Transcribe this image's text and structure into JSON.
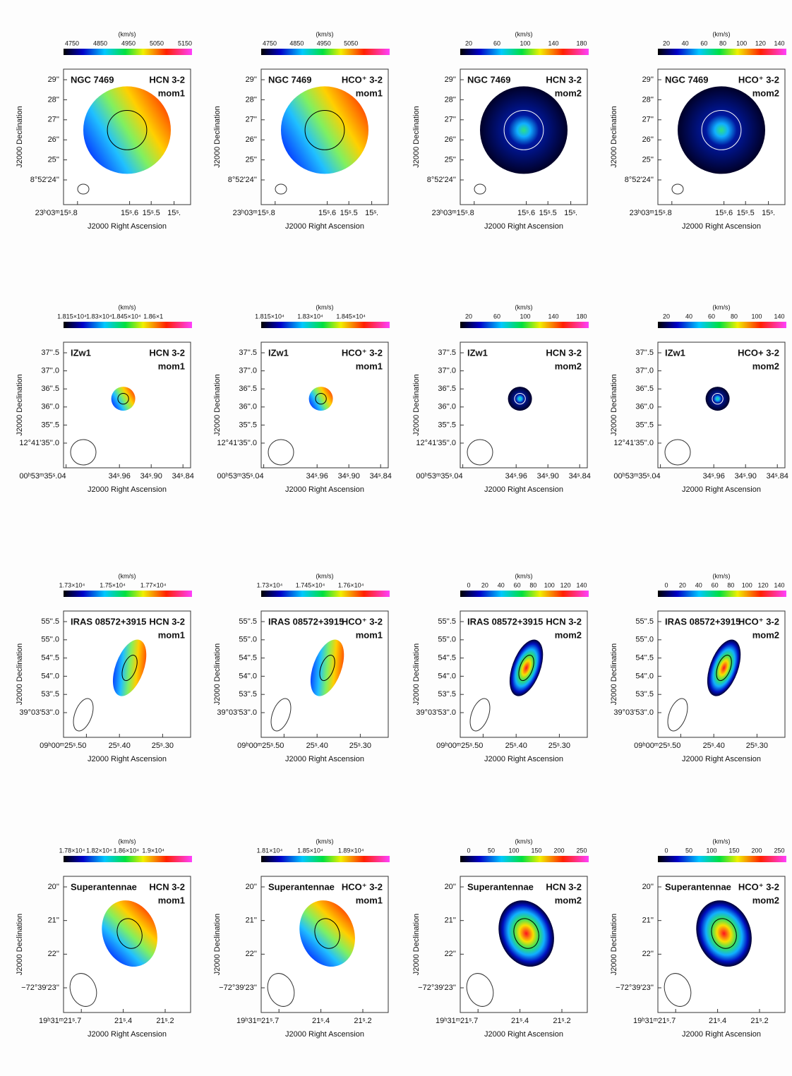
{
  "colorbar_unit": "(km/s)",
  "x_axis_label": "J2000 Right Ascension",
  "y_axis_label": "J2000 Declination",
  "rows": [
    {
      "object": "NGC 7469",
      "yticks": [
        "29''",
        "28''",
        "27''",
        "26''",
        "25''",
        "8°52'24''"
      ],
      "xticks": [
        "23ʰ03ᵐ15ˢ.8",
        "15ˢ.6",
        "15ˢ.5",
        "15ˢ."
      ],
      "panels": [
        {
          "colorbar_ticks": [
            "4750",
            "4850",
            "4950",
            "5050",
            "5150"
          ],
          "line": "HCN 3-2",
          "moment": "mom1"
        },
        {
          "colorbar_ticks": [
            "4750",
            "4850",
            "4950",
            "5050"
          ],
          "line": "HCO⁺ 3-2",
          "moment": "mom1"
        },
        {
          "colorbar_ticks": [
            "20",
            "60",
            "100",
            "140",
            "180"
          ],
          "line": "HCN 3-2",
          "moment": "mom2"
        },
        {
          "colorbar_ticks": [
            "20",
            "40",
            "60",
            "80",
            "100",
            "120",
            "140"
          ],
          "line": "HCO⁺ 3-2",
          "moment": "mom2"
        }
      ]
    },
    {
      "object": "IZw1",
      "yticks": [
        "37''.5",
        "37''.0",
        "36''.5",
        "36''.0",
        "35''.5",
        "12°41'35''.0"
      ],
      "xticks": [
        "00ʰ53ᵐ35ˢ.04",
        "34ˢ.96",
        "34ˢ.90",
        "34ˢ.84"
      ],
      "panels": [
        {
          "colorbar_ticks": [
            "1.815×10⁴",
            "1.83×10⁴",
            "1.845×10⁴",
            "1.86×1"
          ],
          "line": "HCN 3-2",
          "moment": "mom1"
        },
        {
          "colorbar_ticks": [
            "1.815×10⁴",
            "1.83×10⁴",
            "1.845×10⁴"
          ],
          "line": "HCO⁺ 3-2",
          "moment": "mom1"
        },
        {
          "colorbar_ticks": [
            "20",
            "60",
            "100",
            "140",
            "180"
          ],
          "line": "HCN 3-2",
          "moment": "mom2"
        },
        {
          "colorbar_ticks": [
            "20",
            "40",
            "60",
            "80",
            "100",
            "140"
          ],
          "line": "HCO+ 3-2",
          "moment": "mom2"
        }
      ]
    },
    {
      "object": "IRAS 08572+3915",
      "yticks": [
        "55''.5",
        "55''.0",
        "54''.5",
        "54''.0",
        "53''.5",
        "39°03'53''.0"
      ],
      "xticks": [
        "09ʰ00ᵐ25ˢ.50",
        "25ˢ.40",
        "25ˢ.30"
      ],
      "panels": [
        {
          "colorbar_ticks": [
            "1.73×10⁴",
            "1.75×10⁴",
            "1.77×10⁴"
          ],
          "line": "HCN 3-2",
          "moment": "mom1"
        },
        {
          "colorbar_ticks": [
            "1.73×10⁴",
            "1.745×10⁴",
            "1.76×10⁴"
          ],
          "line": "HCO⁺ 3-2",
          "moment": "mom1"
        },
        {
          "colorbar_ticks": [
            "0",
            "20",
            "40",
            "60",
            "80",
            "100",
            "120",
            "140"
          ],
          "line": "HCN 3-2",
          "moment": "mom2"
        },
        {
          "colorbar_ticks": [
            "0",
            "20",
            "40",
            "60",
            "80",
            "100",
            "120",
            "140"
          ],
          "line": "HCO⁺ 3-2",
          "moment": "mom2"
        }
      ]
    },
    {
      "object": "Superantennae",
      "yticks": [
        "20''",
        "21''",
        "22''",
        "−72°39'23''"
      ],
      "xticks": [
        "19ʰ31ᵐ21ˢ.7",
        "21ˢ.4",
        "21ˢ.2"
      ],
      "panels": [
        {
          "colorbar_ticks": [
            "1.78×10⁴",
            "1.82×10⁴",
            "1.86×10⁴",
            "1.9×10⁴"
          ],
          "line": "HCN 3-2",
          "moment": "mom1"
        },
        {
          "colorbar_ticks": [
            "1.81×10⁴",
            "1.85×10⁴",
            "1.89×10⁴"
          ],
          "line": "HCO⁺ 3-2",
          "moment": "mom1"
        },
        {
          "colorbar_ticks": [
            "0",
            "50",
            "100",
            "150",
            "200",
            "250"
          ],
          "line": "HCN 3-2",
          "moment": "mom2"
        },
        {
          "colorbar_ticks": [
            "0",
            "50",
            "100",
            "150",
            "200",
            "250"
          ],
          "line": "HCO⁺ 3-2",
          "moment": "mom2"
        }
      ]
    }
  ]
}
